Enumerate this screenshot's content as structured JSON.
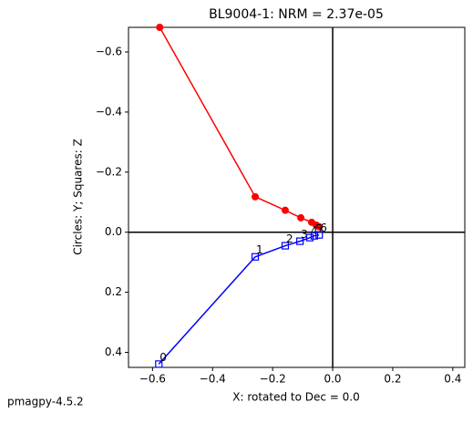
{
  "chart_data": {
    "type": "zijderveld",
    "title": "BL9004-1: NRM =  2.37e-05",
    "xlabel": "X: rotated to Dec =     0.0",
    "ylabel": "Circles: Y; Squares: Z",
    "footer": "pmagpy-4.5.2",
    "xlim": [
      -0.68,
      0.44
    ],
    "ylim": [
      -0.682,
      0.45
    ],
    "y_inverted": true,
    "zero_lines": true,
    "xticks": [
      {
        "value": -0.6,
        "label": "−0.6"
      },
      {
        "value": -0.4,
        "label": "−0.4"
      },
      {
        "value": -0.2,
        "label": "−0.2"
      },
      {
        "value": 0,
        "label": "0.0"
      },
      0.2,
      0.4
    ],
    "yticks": [
      {
        "value": -0.6,
        "label": "−0.6"
      },
      {
        "value": -0.4,
        "label": "−0.4"
      },
      {
        "value": -0.2,
        "label": "−0.2"
      },
      {
        "value": 0,
        "label": "0.0"
      },
      0.2,
      0.4
    ],
    "series": [
      {
        "marker": "circle",
        "color": "#ff0000",
        "x": [
          -0.576,
          -0.258,
          -0.158,
          -0.106,
          -0.07,
          -0.055,
          -0.045
        ],
        "values": [
          -0.682,
          -0.118,
          -0.073,
          -0.048,
          -0.033,
          -0.024,
          -0.018
        ]
      },
      {
        "marker": "square",
        "color": "#0000ff",
        "x": [
          -0.579,
          -0.258,
          -0.158,
          -0.109,
          -0.076,
          -0.061,
          -0.045
        ],
        "values": [
          0.439,
          0.082,
          0.045,
          0.03,
          0.018,
          0.012,
          0.009
        ],
        "point_labels": [
          "0",
          "1",
          "2",
          "3",
          "4",
          "5",
          "6"
        ]
      }
    ]
  }
}
